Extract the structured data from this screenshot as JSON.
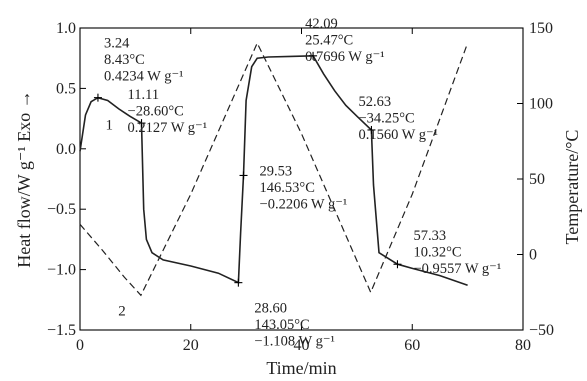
{
  "chart_data": {
    "type": "line",
    "xlabel": "Time/min",
    "ylabel_left": "Heat flow/W g⁻¹  Exo →",
    "ylabel_right": "Temperature/°C",
    "xlim": [
      0,
      80
    ],
    "ylim_left": [
      -1.5,
      1.0
    ],
    "ylim_right": [
      -50,
      150
    ],
    "x_ticks": [
      {
        "v": 0,
        "label": "0"
      },
      {
        "v": 20,
        "label": "20"
      },
      {
        "v": 40,
        "label": "40"
      },
      {
        "v": 60,
        "label": "60"
      },
      {
        "v": 80,
        "label": "80"
      }
    ],
    "y_left_ticks": [
      {
        "v": 1.0,
        "label": "1.0"
      },
      {
        "v": 0.5,
        "label": "0.5"
      },
      {
        "v": 0.0,
        "label": "0.0"
      },
      {
        "v": -0.5,
        "label": "−0.5"
      },
      {
        "v": -1.0,
        "label": "−1.0"
      },
      {
        "v": -1.5,
        "label": "−1.5"
      }
    ],
    "y_right_ticks": [
      {
        "v": 150,
        "label": "150"
      },
      {
        "v": 100,
        "label": "100"
      },
      {
        "v": 50,
        "label": "50"
      },
      {
        "v": 0,
        "label": "0"
      },
      {
        "v": -50,
        "label": "−50"
      }
    ],
    "series": [
      {
        "label": "1",
        "axis": "left",
        "style": "solid",
        "x": [
          0,
          1,
          2,
          3.24,
          5,
          7,
          9,
          11.11,
          11.5,
          12,
          13,
          15,
          20,
          25,
          28.6,
          29.0,
          29.53,
          30,
          31,
          32,
          34,
          38,
          42.09,
          44,
          46,
          48,
          50,
          52.63,
          53,
          54,
          57.33,
          60,
          65,
          70
        ],
        "y": [
          -0.02,
          0.28,
          0.39,
          0.4234,
          0.4,
          0.33,
          0.27,
          0.2127,
          -0.5,
          -0.75,
          -0.86,
          -0.92,
          -0.97,
          -1.03,
          -1.108,
          -0.7,
          -0.2206,
          0.4,
          0.68,
          0.75,
          0.76,
          0.765,
          0.7696,
          0.62,
          0.48,
          0.36,
          0.27,
          0.156,
          -0.3,
          -0.86,
          -0.9557,
          -0.99,
          -1.05,
          -1.13
        ]
      },
      {
        "label": "2",
        "axis": "right",
        "style": "dashed",
        "x": [
          0,
          4,
          8,
          11,
          20,
          32,
          40,
          52.5,
          60,
          70
        ],
        "y": [
          20,
          3,
          -15,
          -27,
          40,
          140,
          80,
          -25,
          40,
          140
        ]
      }
    ],
    "annotations": [
      {
        "x": 3.24,
        "y": 0.4234,
        "lines": [
          "3.24",
          "8.43°C",
          "0.4234 W g⁻¹"
        ]
      },
      {
        "x": 11.11,
        "y": 0.2127,
        "lines": [
          "11.11",
          "−28.60°C",
          "0.2127 W g⁻¹"
        ]
      },
      {
        "x": 28.6,
        "y": -1.108,
        "lines": [
          "28.60",
          "143.05°C",
          "−1.108 W g⁻¹"
        ]
      },
      {
        "x": 29.53,
        "y": -0.2206,
        "lines": [
          "29.53",
          "146.53°C",
          "−0.2206 W g⁻¹"
        ]
      },
      {
        "x": 42.09,
        "y": 0.7696,
        "lines": [
          "42.09",
          "25.47°C",
          "0.7696 W g⁻¹"
        ]
      },
      {
        "x": 52.63,
        "y": 0.156,
        "lines": [
          "52.63",
          "−34.25°C",
          "0.1560 W g⁻¹"
        ]
      },
      {
        "x": 57.33,
        "y": -0.9557,
        "lines": [
          "57.33",
          "10.32°C",
          "−0.9557 W g⁻¹"
        ]
      }
    ],
    "grid": false,
    "legend": "none"
  }
}
